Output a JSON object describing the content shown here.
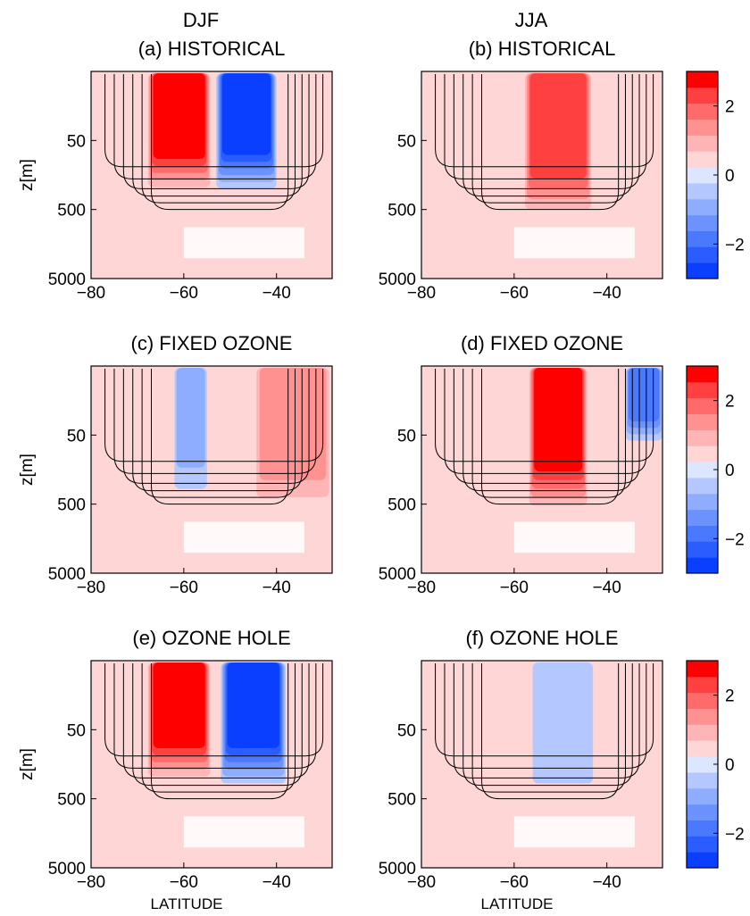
{
  "figure": {
    "column_headers": [
      "DJF",
      "JJA"
    ],
    "xlabel": "LATITUDE",
    "ylabel": "z[m]"
  },
  "colors": {
    "blue_deep": "#0a3fff",
    "red_deep": "#ff0000",
    "neutral": "#ffffff",
    "contour": "#000000"
  },
  "chart_data": [
    {
      "type": "heatmap",
      "panel": "a",
      "column": "DJF",
      "title": "(a) HISTORICAL",
      "xlabel": "",
      "ylabel": "z[m]",
      "x_ticks": [
        -80,
        -60,
        -40
      ],
      "y_ticks": [
        50,
        500,
        5000
      ],
      "xlim": [
        -80,
        -28
      ],
      "ylim_depth": [
        5000,
        5
      ],
      "y_scale": "log-depth",
      "field": {
        "positive_band": {
          "lat": [
            -68,
            -54
          ],
          "depth_max": 300,
          "peak": 3
        },
        "negative_band": {
          "lat": [
            -53,
            -40
          ],
          "depth_max": 250,
          "peak": -3
        },
        "background": 0.5
      }
    },
    {
      "type": "heatmap",
      "panel": "b",
      "column": "JJA",
      "title": "(b) HISTORICAL",
      "xlabel": "",
      "ylabel": "",
      "x_ticks": [
        -80,
        -60,
        -40
      ],
      "y_ticks": [
        50,
        500,
        5000
      ],
      "xlim": [
        -80,
        -28
      ],
      "ylim_depth": [
        5000,
        5
      ],
      "y_scale": "log-depth",
      "field": {
        "positive_band": {
          "lat": [
            -58,
            -43
          ],
          "depth_max": 700,
          "peak": 2.5
        },
        "background": 0.5
      }
    },
    {
      "type": "heatmap",
      "panel": "c",
      "column": "DJF",
      "title": "(c) FIXED OZONE",
      "xlabel": "",
      "ylabel": "z[m]",
      "x_ticks": [
        -80,
        -60,
        -40
      ],
      "y_ticks": [
        50,
        500,
        5000
      ],
      "xlim": [
        -80,
        -28
      ],
      "ylim_depth": [
        5000,
        5
      ],
      "y_scale": "log-depth",
      "field": {
        "positive_band": {
          "lat": [
            -45,
            -28
          ],
          "depth_max": 700,
          "peak": 1.5
        },
        "negative_band": {
          "lat": [
            -62,
            -55
          ],
          "depth_max": 300,
          "peak": -1
        },
        "background": 0.5
      }
    },
    {
      "type": "heatmap",
      "panel": "d",
      "column": "JJA",
      "title": "(d) FIXED OZONE",
      "xlabel": "",
      "ylabel": "",
      "x_ticks": [
        -80,
        -60,
        -40
      ],
      "y_ticks": [
        50,
        500,
        5000
      ],
      "xlim": [
        -80,
        -28
      ],
      "ylim_depth": [
        5000,
        5
      ],
      "y_scale": "log-depth",
      "field": {
        "positive_band": {
          "lat": [
            -57,
            -44
          ],
          "depth_max": 700,
          "peak": 3
        },
        "negative_band": {
          "lat": [
            -36,
            -28
          ],
          "depth_max": 60,
          "peak": -2
        },
        "background": 0.5
      }
    },
    {
      "type": "heatmap",
      "panel": "e",
      "column": "DJF",
      "title": "(e) OZONE HOLE",
      "xlabel": "LATITUDE",
      "ylabel": "z[m]",
      "x_ticks": [
        -80,
        -60,
        -40
      ],
      "y_ticks": [
        50,
        500,
        5000
      ],
      "xlim": [
        -80,
        -28
      ],
      "ylim_depth": [
        5000,
        5
      ],
      "y_scale": "log-depth",
      "field": {
        "positive_band": {
          "lat": [
            -68,
            -54
          ],
          "depth_max": 300,
          "peak": 3
        },
        "negative_band": {
          "lat": [
            -52,
            -38
          ],
          "depth_max": 300,
          "peak": -3
        },
        "background": 0.5
      }
    },
    {
      "type": "heatmap",
      "panel": "f",
      "column": "JJA",
      "title": "(f) OZONE HOLE",
      "xlabel": "LATITUDE",
      "ylabel": "",
      "x_ticks": [
        -80,
        -60,
        -40
      ],
      "y_ticks": [
        50,
        500,
        5000
      ],
      "xlim": [
        -80,
        -28
      ],
      "ylim_depth": [
        5000,
        5
      ],
      "y_scale": "log-depth",
      "field": {
        "negative_band": {
          "lat": [
            -56,
            -43
          ],
          "depth_max": 300,
          "peak": -0.5
        },
        "background": 0.5
      }
    }
  ],
  "colorbar": {
    "levels": [
      -3,
      -2.5,
      -2,
      -1.5,
      -1,
      -0.5,
      0,
      0.5,
      1,
      1.5,
      2,
      2.5,
      3
    ],
    "tick_labels": [
      "2",
      "0",
      "−2"
    ],
    "tick_values": [
      2,
      0,
      -2
    ],
    "colors": [
      "#0a3fff",
      "#2a5cff",
      "#4a78ff",
      "#6b92ff",
      "#8fadff",
      "#b4c8ff",
      "#dde6ff",
      "#ffd6d6",
      "#ffb5b5",
      "#ff9191",
      "#ff6b6b",
      "#ff4040",
      "#ff0000"
    ]
  }
}
